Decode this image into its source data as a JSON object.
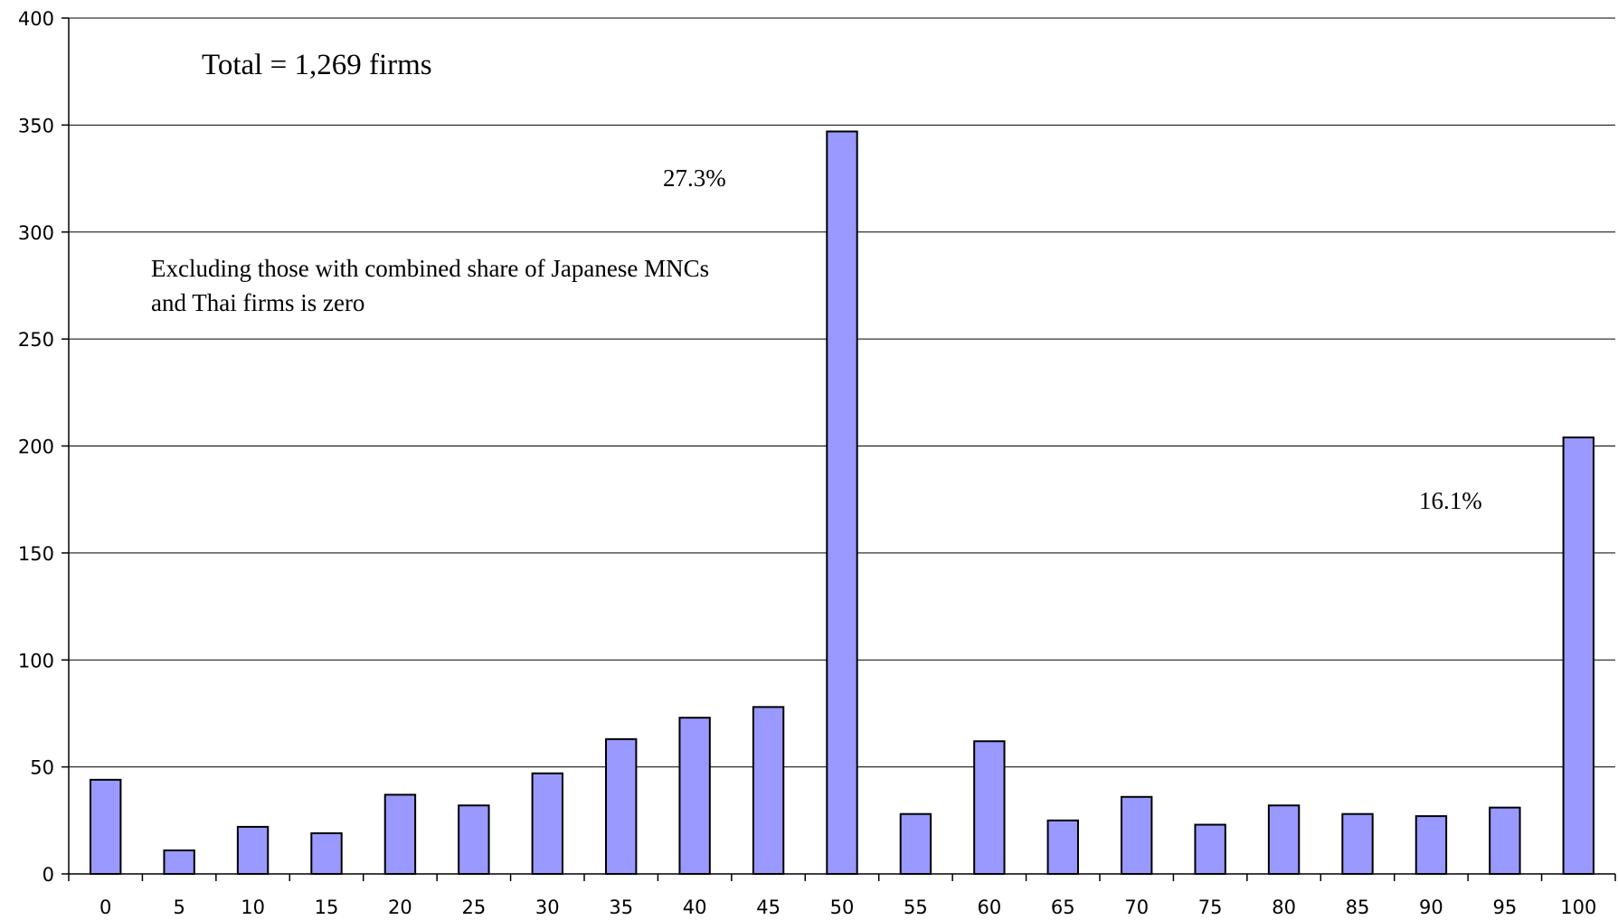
{
  "chart_data": {
    "type": "bar",
    "categories": [
      "0",
      "5",
      "10",
      "15",
      "20",
      "25",
      "30",
      "35",
      "40",
      "45",
      "50",
      "55",
      "60",
      "65",
      "70",
      "75",
      "80",
      "85",
      "90",
      "95",
      "100"
    ],
    "values": [
      44,
      11,
      22,
      19,
      37,
      32,
      47,
      63,
      73,
      78,
      347,
      28,
      62,
      25,
      36,
      23,
      32,
      28,
      27,
      31,
      204
    ],
    "ylim": [
      0,
      400
    ],
    "yticks": [
      0,
      50,
      100,
      150,
      200,
      250,
      300,
      350,
      400
    ],
    "grid": true,
    "legend": "none",
    "bar_color": "#9999ff",
    "bar_edge_color": "#000000",
    "annotations": {
      "total": "Total = 1,269 firms",
      "note_line1": "Excluding those with combined share of Japanese MNCs",
      "note_line2": "and Thai firms is zero",
      "pct_50": "27.3%",
      "pct_100": "16.1%"
    }
  }
}
